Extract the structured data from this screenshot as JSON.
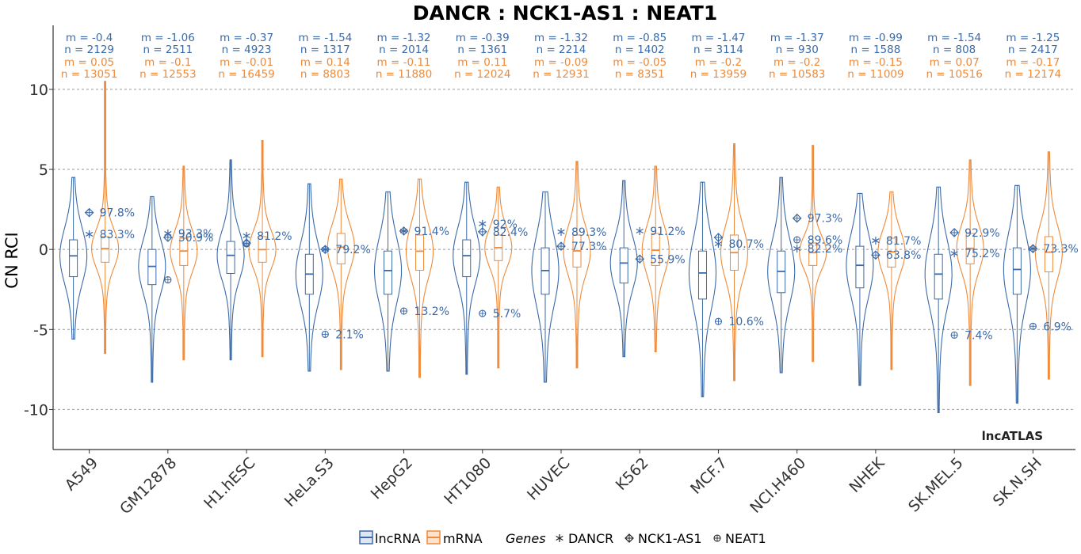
{
  "chart_data": {
    "type": "violin",
    "title": "DANCR : NCK1-AS1 : NEAT1",
    "ylabel": "CN RCI",
    "xlabel": "",
    "ylim": [
      -12.5,
      14
    ],
    "yticks": [
      10,
      5,
      0,
      -5,
      -10
    ],
    "ytick_labels": [
      "10",
      "5",
      "0",
      "-5",
      "-10"
    ],
    "grid": "horizontal dashed at y ticks",
    "watermark": "lncATLAS",
    "colors": {
      "lncRNA": "#3b6aa8",
      "mRNA": "#ee8a3a"
    },
    "categories": [
      "A549",
      "GM12878",
      "H1.hESC",
      "HeLa.S3",
      "HepG2",
      "HT1080",
      "HUVEC",
      "K562",
      "MCF.7",
      "NCI.H460",
      "NHEK",
      "SK.MEL.5",
      "SK.N.SH"
    ],
    "series": [
      {
        "name": "lncRNA",
        "stats_m": [
          "m = -0.4",
          "m = -1.06",
          "m = -0.37",
          "m = -1.54",
          "m = -1.32",
          "m = -0.39",
          "m = -1.32",
          "m = -0.85",
          "m = -1.47",
          "m = -1.37",
          "m = -0.99",
          "m = -1.54",
          "m = -1.25"
        ],
        "stats_n": [
          "n = 2129",
          "n = 2511",
          "n = 4923",
          "n = 1317",
          "n = 2014",
          "n = 1361",
          "n = 2214",
          "n = 1402",
          "n = 3114",
          "n = 930",
          "n = 1588",
          "n = 808",
          "n = 2417"
        ],
        "median": [
          -0.4,
          -1.06,
          -0.37,
          -1.54,
          -1.32,
          -0.39,
          -1.32,
          -0.85,
          -1.47,
          -1.37,
          -0.99,
          -1.54,
          -1.25
        ],
        "q1": [
          -1.7,
          -2.2,
          -1.5,
          -2.8,
          -2.8,
          -1.7,
          -2.8,
          -2.1,
          -3.1,
          -2.7,
          -2.4,
          -3.1,
          -2.8
        ],
        "q3": [
          0.6,
          0.0,
          0.5,
          -0.3,
          -0.1,
          0.6,
          0.1,
          0.1,
          -0.1,
          -0.1,
          0.2,
          -0.3,
          0.1
        ],
        "min": [
          -5.6,
          -8.3,
          -6.9,
          -7.6,
          -7.6,
          -7.8,
          -8.3,
          -6.7,
          -9.2,
          -7.7,
          -8.5,
          -10.2,
          -9.6
        ],
        "max": [
          4.5,
          3.3,
          5.6,
          4.1,
          3.6,
          4.2,
          3.6,
          4.3,
          4.2,
          4.5,
          3.5,
          3.9,
          4.0
        ]
      },
      {
        "name": "mRNA",
        "stats_m": [
          "m = 0.05",
          "m = -0.1",
          "m = -0.01",
          "m = 0.14",
          "m = -0.11",
          "m = 0.11",
          "m = -0.09",
          "m = -0.05",
          "m = -0.2",
          "m = -0.2",
          "m = -0.15",
          "m = 0.07",
          "m = -0.17"
        ],
        "stats_n": [
          "n = 13051",
          "n = 12553",
          "n = 16459",
          "n = 8803",
          "n = 11880",
          "n = 12024",
          "n = 12931",
          "n = 8351",
          "n = 13959",
          "n = 10583",
          "n = 11009",
          "n = 10516",
          "n = 12174"
        ],
        "median": [
          0.05,
          -0.1,
          -0.01,
          0.14,
          -0.11,
          0.11,
          -0.09,
          -0.05,
          -0.2,
          -0.2,
          -0.15,
          0.07,
          -0.17
        ],
        "q1": [
          -0.8,
          -1.0,
          -0.8,
          -0.9,
          -1.3,
          -0.7,
          -1.1,
          -1.0,
          -1.3,
          -1.0,
          -1.1,
          -0.9,
          -1.4
        ],
        "q3": [
          0.8,
          0.7,
          0.8,
          1.0,
          0.9,
          0.9,
          0.9,
          1.0,
          0.9,
          0.4,
          0.7,
          1.0,
          0.8
        ],
        "min": [
          -6.5,
          -6.9,
          -6.7,
          -7.5,
          -8.0,
          -7.4,
          -7.4,
          -6.4,
          -8.2,
          -7.0,
          -7.5,
          -8.5,
          -8.1
        ],
        "max": [
          10.5,
          5.2,
          6.8,
          4.4,
          4.4,
          3.9,
          5.5,
          5.2,
          6.6,
          6.5,
          3.6,
          5.6,
          6.1
        ]
      }
    ],
    "genes": [
      {
        "name": "DANCR",
        "marker": "asterisk",
        "values": [
          0.95,
          1.0,
          0.85,
          0.0,
          1.15,
          1.6,
          1.1,
          1.15,
          0.35,
          0.05,
          0.55,
          -0.25,
          0.05
        ],
        "labels": [
          "83.3%",
          "93.3%",
          "81.2%",
          "79.2%",
          "91.4%",
          "92%",
          "89.3%",
          "91.2%",
          "80.7%",
          "82.2%",
          "81.7%",
          "75.2%",
          "73.3%"
        ]
      },
      {
        "name": "NCK1-AS1",
        "marker": "diamond-plus",
        "values": [
          2.3,
          0.75,
          0.4,
          0.0,
          1.15,
          1.1,
          0.2,
          -0.6,
          0.75,
          1.95,
          -0.35,
          1.05,
          0.05
        ],
        "labels": [
          "97.8%",
          "30.9%",
          "",
          "",
          "",
          "82.4%",
          "77.3%",
          "55.9%",
          "",
          "97.3%",
          "63.8%",
          "92.9%",
          ""
        ]
      },
      {
        "name": "NEAT1",
        "marker": "circle-plus",
        "values": [
          null,
          -1.9,
          0.35,
          -5.3,
          -3.85,
          -4.0,
          null,
          null,
          -4.5,
          0.6,
          null,
          -5.35,
          -4.8
        ],
        "labels": [
          "",
          "",
          "",
          "2.1%",
          "13.2%",
          "5.7%",
          "",
          "",
          "10.6%",
          "89.6%",
          "",
          "7.4%",
          "6.9%"
        ]
      }
    ]
  },
  "legend": {
    "lncRNA_label": "lncRNA",
    "mRNA_label": "mRNA",
    "genes_title": "Genes",
    "gene_labels": [
      "DANCR",
      "NCK1-AS1",
      "NEAT1"
    ]
  }
}
